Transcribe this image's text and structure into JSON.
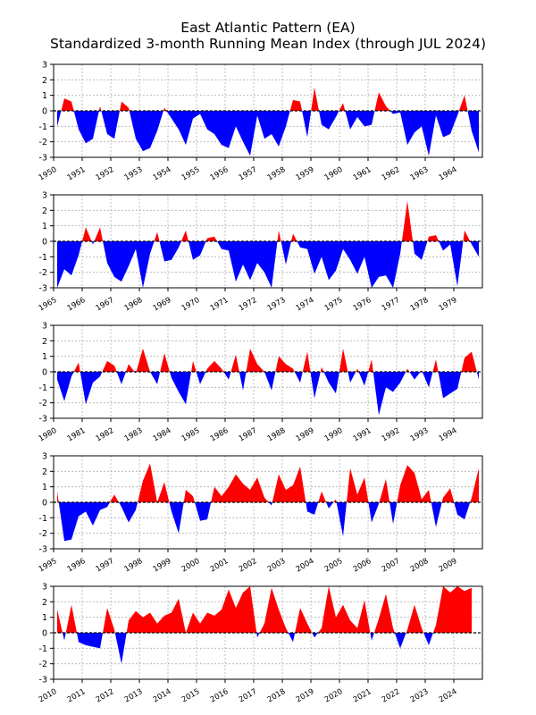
{
  "chart_data": {
    "type": "area",
    "title": "East Atlantic Pattern (EA)",
    "subtitle": "Standardized 3-month Running Mean Index (through JUL 2024)",
    "xlabel": "",
    "ylabel": "",
    "ylim": [
      -3,
      3
    ],
    "yticks": [
      "3",
      "2",
      "1",
      "0",
      "-1",
      "-2",
      "-3"
    ],
    "grid": true,
    "zero_line": "dashed",
    "colors": {
      "positive": "#ff0000",
      "negative": "#0000ff"
    },
    "sampling": "quarterly (approximate, read from chart)",
    "panels": [
      {
        "start": 1950,
        "end": 1965,
        "xticks": [
          "1950",
          "1951",
          "1952",
          "1953",
          "1954",
          "1955",
          "1956",
          "1957",
          "1958",
          "1959",
          "1960",
          "1961",
          "1962",
          "1963",
          "1964"
        ],
        "values": [
          -1.0,
          0.8,
          0.6,
          -1.2,
          -2.1,
          -1.8,
          0.3,
          -1.5,
          -1.8,
          0.6,
          0.2,
          -1.8,
          -2.6,
          -2.4,
          -1.3,
          0.2,
          -0.5,
          -1.2,
          -2.2,
          -0.5,
          -0.2,
          -1.2,
          -1.5,
          -2.2,
          -2.4,
          -1.0,
          -2.0,
          -2.9,
          -0.3,
          -1.8,
          -1.5,
          -2.3,
          -1.0,
          0.7,
          0.6,
          -1.7,
          1.5,
          -0.9,
          -1.2,
          -0.4,
          0.5,
          -1.2,
          -0.4,
          -1.0,
          -0.9,
          1.2,
          0.3,
          -0.2,
          -0.1,
          -2.2,
          -1.4,
          -1.0,
          -2.9,
          -0.3,
          -1.7,
          -1.5,
          -0.3,
          1.0,
          -1.3,
          -2.7
        ]
      },
      {
        "start": 1965,
        "end": 1980,
        "xticks": [
          "1965",
          "1966",
          "1967",
          "1968",
          "1969",
          "1970",
          "1971",
          "1972",
          "1973",
          "1974",
          "1975",
          "1976",
          "1977",
          "1978",
          "1979"
        ],
        "values": [
          -3.0,
          -1.8,
          -2.2,
          -0.9,
          0.9,
          -0.2,
          0.9,
          -1.4,
          -2.3,
          -2.6,
          -1.6,
          -0.5,
          -3.0,
          -0.8,
          0.6,
          -1.3,
          -1.2,
          -0.4,
          0.7,
          -1.2,
          -0.9,
          0.2,
          0.3,
          -0.5,
          -0.6,
          -2.6,
          -1.5,
          -2.5,
          -1.4,
          -2.0,
          -3.0,
          0.7,
          -1.5,
          0.5,
          -0.4,
          -0.5,
          -2.1,
          -1.0,
          -2.5,
          -1.9,
          -0.5,
          -1.2,
          -2.1,
          -1.0,
          -3.0,
          -2.3,
          -2.2,
          -3.0,
          -0.8,
          2.6,
          -0.8,
          -1.2,
          0.3,
          0.4,
          -0.6,
          -0.2,
          -2.9,
          0.7,
          -0.2,
          -1.0
        ]
      },
      {
        "start": 1980,
        "end": 1995,
        "xticks": [
          "1980",
          "1981",
          "1982",
          "1983",
          "1984",
          "1985",
          "1986",
          "1987",
          "1988",
          "1989",
          "1990",
          "1991",
          "1992",
          "1993",
          "1994"
        ],
        "values": [
          -0.5,
          -1.9,
          -0.3,
          0.6,
          -2.1,
          -0.7,
          -0.3,
          0.7,
          0.4,
          -0.8,
          0.5,
          -0.1,
          1.5,
          0.0,
          -0.8,
          1.2,
          -0.4,
          -1.3,
          -2.1,
          0.7,
          -0.8,
          0.2,
          0.7,
          0.2,
          -0.5,
          1.1,
          -1.2,
          1.5,
          0.5,
          0.0,
          -1.2,
          1.0,
          0.5,
          0.2,
          -0.7,
          1.3,
          -1.7,
          0.3,
          -0.7,
          -1.4,
          1.5,
          -0.7,
          0.2,
          -0.9,
          0.8,
          -2.8,
          -1.0,
          -1.3,
          -0.7,
          0.2,
          -0.5,
          0.1,
          -1.0,
          0.8,
          -1.7,
          -1.4,
          -1.1,
          0.9,
          1.3,
          -0.5
        ]
      },
      {
        "start": 1995,
        "end": 2010,
        "xticks": [
          "1995",
          "1996",
          "1997",
          "1998",
          "1999",
          "2000",
          "2001",
          "2002",
          "2003",
          "2004",
          "2005",
          "2006",
          "2007",
          "2008",
          "2009"
        ],
        "values": [
          0.7,
          -2.5,
          -2.4,
          -0.9,
          -0.6,
          -1.5,
          -0.5,
          -0.3,
          0.5,
          -0.3,
          -1.3,
          -0.5,
          1.4,
          2.5,
          0.0,
          1.3,
          -0.6,
          -2.0,
          0.8,
          0.4,
          -1.2,
          -1.1,
          1.0,
          0.4,
          1.0,
          1.8,
          1.2,
          0.8,
          1.6,
          0.3,
          -0.2,
          1.8,
          0.8,
          1.1,
          2.3,
          -0.6,
          -0.8,
          0.7,
          -0.4,
          0.2,
          -2.2,
          2.2,
          0.5,
          1.6,
          -1.3,
          -0.1,
          1.5,
          -1.4,
          1.1,
          2.4,
          1.9,
          0.2,
          0.8,
          -1.6,
          0.3,
          0.9,
          -0.8,
          -1.1,
          0.3,
          2.2
        ]
      },
      {
        "start": 2010,
        "end": 2025,
        "xticks": [
          "2010",
          "2011",
          "2012",
          "2013",
          "2014",
          "2015",
          "2016",
          "2017",
          "2018",
          "2019",
          "2020",
          "2021",
          "2022",
          "2023",
          "2024"
        ],
        "values": [
          1.5,
          -0.5,
          1.8,
          -0.6,
          -0.8,
          -0.9,
          -1.0,
          1.6,
          0.2,
          -2.0,
          0.8,
          1.4,
          1.0,
          1.3,
          0.6,
          1.1,
          1.3,
          2.2,
          0.0,
          1.3,
          0.6,
          1.3,
          1.1,
          1.5,
          2.8,
          1.6,
          2.6,
          3.0,
          -0.3,
          0.6,
          2.9,
          1.5,
          0.3,
          -0.6,
          1.6,
          0.6,
          -0.3,
          0.3,
          3.0,
          1.0,
          1.8,
          0.8,
          0.3,
          2.1,
          -0.5,
          0.9,
          2.5,
          0.3,
          -1.0,
          0.2,
          1.8,
          0.3,
          -0.8,
          0.5,
          3.0,
          2.6,
          3.0,
          2.7,
          2.9
        ]
      }
    ]
  }
}
